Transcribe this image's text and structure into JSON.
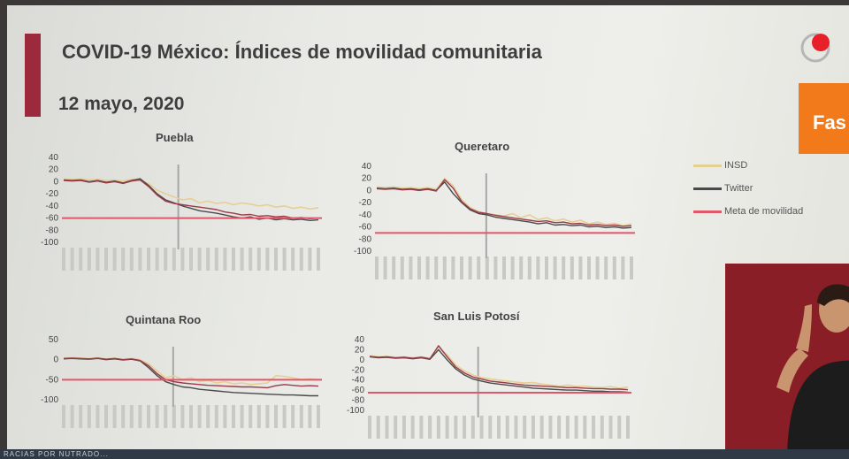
{
  "slide": {
    "title": "COVID-19 México: Índices de movilidad comunitaria",
    "date": "12 mayo, 2020",
    "side_label": "Fas",
    "banner": "RACIAS POR NUTRADO..."
  },
  "legend": [
    {
      "label": "INSD",
      "color": "#e6cf95"
    },
    {
      "label": "Twitter",
      "color": "#4a4a4a"
    },
    {
      "label": "Meta de movilidad",
      "color": "#e0566b"
    }
  ],
  "chart_data": [
    {
      "type": "line",
      "title": "Puebla",
      "yticks": [
        40,
        20,
        0,
        -20,
        -40,
        -60,
        -80,
        -100
      ],
      "ylim": [
        -100,
        40
      ],
      "target": -60,
      "marker_x": 0.45,
      "series": [
        {
          "color": "#e6cf95",
          "values": [
            5,
            4,
            5,
            3,
            4,
            2,
            3,
            1,
            4,
            2,
            -3,
            -14,
            -20,
            -25,
            -30,
            -28,
            -35,
            -32,
            -36,
            -34,
            -38,
            -35,
            -37,
            -40,
            -38,
            -42,
            -40,
            -44,
            -42,
            -45,
            -43
          ]
        },
        {
          "color": "#4a4a4a",
          "values": [
            3,
            2,
            3,
            0,
            2,
            -1,
            1,
            -2,
            2,
            5,
            -6,
            -20,
            -30,
            -35,
            -40,
            -44,
            -48,
            -50,
            -52,
            -55,
            -58,
            -60,
            -58,
            -62,
            -60,
            -63,
            -61,
            -63,
            -62,
            -64,
            -63
          ]
        },
        {
          "color": "#9a3a4a",
          "values": [
            2,
            1,
            2,
            -1,
            1,
            -2,
            0,
            -3,
            1,
            3,
            -8,
            -22,
            -32,
            -36,
            -38,
            -40,
            -42,
            -44,
            -46,
            -50,
            -52,
            -55,
            -54,
            -57,
            -56,
            -58,
            -57,
            -60,
            -59,
            -61,
            -60
          ]
        }
      ]
    },
    {
      "type": "line",
      "title": "Queretaro",
      "yticks": [
        40,
        20,
        0,
        -20,
        -40,
        -60,
        -80,
        -100
      ],
      "ylim": [
        -100,
        40
      ],
      "target": -70,
      "marker_x": 0.43,
      "series": [
        {
          "color": "#e6cf95",
          "values": [
            6,
            5,
            6,
            4,
            5,
            3,
            5,
            2,
            20,
            8,
            -15,
            -28,
            -35,
            -38,
            -40,
            -42,
            -38,
            -45,
            -40,
            -48,
            -45,
            -50,
            -47,
            -52,
            -49,
            -55,
            -52,
            -56,
            -54,
            -58,
            -55
          ]
        },
        {
          "color": "#4a4a4a",
          "values": [
            4,
            3,
            4,
            2,
            3,
            1,
            3,
            0,
            14,
            -5,
            -20,
            -32,
            -38,
            -40,
            -44,
            -46,
            -48,
            -50,
            -52,
            -55,
            -53,
            -57,
            -56,
            -58,
            -57,
            -60,
            -59,
            -61,
            -60,
            -62,
            -61
          ]
        },
        {
          "color": "#9a3a4a",
          "values": [
            3,
            2,
            3,
            1,
            2,
            0,
            2,
            -1,
            18,
            4,
            -18,
            -30,
            -36,
            -38,
            -41,
            -43,
            -45,
            -47,
            -49,
            -51,
            -50,
            -53,
            -52,
            -55,
            -54,
            -57,
            -56,
            -58,
            -57,
            -59,
            -58
          ]
        }
      ]
    },
    {
      "type": "line",
      "title": "Quintana Roo",
      "yticks": [
        50,
        0,
        -50,
        -100
      ],
      "ylim": [
        -100,
        50
      ],
      "target": -50,
      "marker_x": 0.43,
      "series": [
        {
          "color": "#e6cf95",
          "values": [
            4,
            5,
            4,
            3,
            5,
            2,
            4,
            1,
            3,
            0,
            -10,
            -28,
            -45,
            -40,
            -50,
            -45,
            -55,
            -52,
            -58,
            -55,
            -60,
            -58,
            -62,
            -60,
            -58,
            -40,
            -42,
            -45,
            -50,
            -48,
            -50
          ]
        },
        {
          "color": "#4a4a4a",
          "values": [
            2,
            3,
            2,
            1,
            3,
            0,
            2,
            -1,
            1,
            -3,
            -20,
            -40,
            -55,
            -62,
            -68,
            -70,
            -74,
            -76,
            -78,
            -80,
            -82,
            -83,
            -84,
            -85,
            -86,
            -87,
            -88,
            -88,
            -89,
            -90,
            -90
          ]
        },
        {
          "color": "#9a3a4a",
          "values": [
            3,
            4,
            3,
            2,
            4,
            1,
            3,
            0,
            2,
            -2,
            -15,
            -35,
            -50,
            -55,
            -58,
            -60,
            -62,
            -64,
            -65,
            -66,
            -67,
            -68,
            -68,
            -69,
            -70,
            -65,
            -62,
            -64,
            -66,
            -65,
            -66
          ]
        }
      ]
    },
    {
      "type": "line",
      "title": "San Luis Potosí",
      "yticks": [
        40,
        20,
        0,
        -20,
        -40,
        -60,
        -80,
        -100
      ],
      "ylim": [
        -100,
        40
      ],
      "target": -65,
      "marker_x": 0.42,
      "series": [
        {
          "color": "#e6cf95",
          "values": [
            8,
            6,
            7,
            5,
            6,
            4,
            6,
            3,
            25,
            10,
            -10,
            -22,
            -30,
            -35,
            -38,
            -40,
            -42,
            -44,
            -46,
            -45,
            -48,
            -50,
            -52,
            -50,
            -53,
            -52,
            -54,
            -55,
            -53,
            -56,
            -54
          ]
        },
        {
          "color": "#4a4a4a",
          "values": [
            6,
            4,
            5,
            3,
            4,
            2,
            4,
            1,
            20,
            0,
            -18,
            -30,
            -38,
            -42,
            -46,
            -48,
            -50,
            -52,
            -54,
            -56,
            -57,
            -58,
            -59,
            -60,
            -60,
            -61,
            -62,
            -62,
            -63,
            -63,
            -64
          ]
        },
        {
          "color": "#9a3a4a",
          "values": [
            7,
            5,
            6,
            4,
            5,
            3,
            5,
            2,
            28,
            6,
            -14,
            -26,
            -34,
            -38,
            -42,
            -44,
            -46,
            -48,
            -50,
            -51,
            -52,
            -53,
            -54,
            -55,
            -55,
            -56,
            -57,
            -57,
            -58,
            -58,
            -59
          ]
        }
      ]
    }
  ]
}
